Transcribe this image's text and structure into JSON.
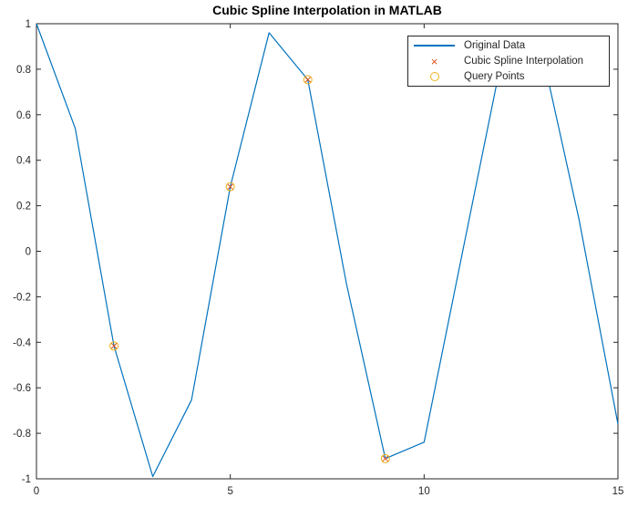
{
  "chart_data": {
    "type": "line",
    "title": "Cubic Spline Interpolation in MATLAB",
    "xlabel": "",
    "ylabel": "",
    "xlim": [
      0,
      15
    ],
    "ylim": [
      -1,
      1
    ],
    "x_ticks": [
      0,
      5,
      10,
      15
    ],
    "y_ticks": [
      -1,
      -0.8,
      -0.6,
      -0.4,
      -0.2,
      0,
      0.2,
      0.4,
      0.6,
      0.8,
      1
    ],
    "grid": false,
    "box": true,
    "tick_direction": "in",
    "legend_position": "northeast",
    "axis_color": "#262626",
    "tick_label_color": "#262626",
    "background": "#ffffff",
    "series": [
      {
        "name": "Original Data",
        "plot_type": "line",
        "color": "#0072BD",
        "x": [
          0,
          1,
          2,
          3,
          4,
          5,
          6,
          7,
          8,
          9,
          10,
          11,
          12,
          13,
          14,
          15
        ],
        "y": [
          1.0,
          0.5403,
          -0.4161,
          -0.99,
          -0.6536,
          0.2837,
          0.9602,
          0.7539,
          -0.1455,
          -0.9111,
          -0.8391,
          0.0044,
          0.8439,
          0.9074,
          0.1367,
          -0.7597
        ]
      },
      {
        "name": "Cubic Spline Interpolation",
        "plot_type": "scatter",
        "marker": "x",
        "color": "#D95319",
        "x": [
          2,
          5,
          7,
          9
        ],
        "y": [
          -0.4161,
          0.2837,
          0.7539,
          -0.9111
        ]
      },
      {
        "name": "Query Points",
        "plot_type": "scatter",
        "marker": "circle",
        "color": "#EDB120",
        "x": [
          2,
          5,
          7,
          9
        ],
        "y": [
          -0.4161,
          0.2837,
          0.7539,
          -0.9111
        ]
      }
    ]
  },
  "legend": {
    "items": [
      {
        "label": "Original Data",
        "marker": "line",
        "color": "#0072BD"
      },
      {
        "label": "Cubic Spline Interpolation",
        "marker": "x",
        "color": "#D95319"
      },
      {
        "label": "Query Points",
        "marker": "circle",
        "color": "#EDB120"
      }
    ]
  }
}
